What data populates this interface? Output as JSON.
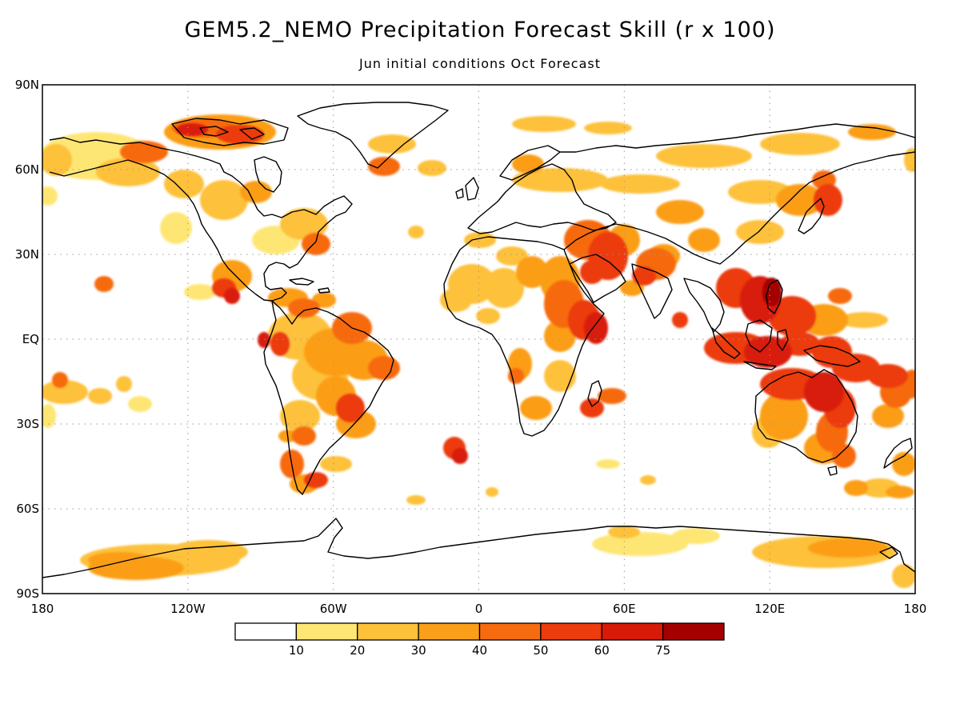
{
  "title": "GEM5.2_NEMO Precipitation Forecast Skill (r x 100)",
  "subtitle": "Jun initial conditions  Oct Forecast",
  "lat_labels": [
    "90N",
    "60N",
    "30N",
    "EQ",
    "30S",
    "60S",
    "90S"
  ],
  "lon_labels": [
    "180",
    "120W",
    "60W",
    "0",
    "60E",
    "120E",
    "180"
  ],
  "colorbar": {
    "colors": [
      "#ffffff",
      "#fee675",
      "#fdc13a",
      "#fb9e19",
      "#f66b0f",
      "#ec3b0c",
      "#d81a08",
      "#a50000"
    ],
    "labels": [
      "10",
      "20",
      "30",
      "40",
      "50",
      "60",
      "75"
    ]
  },
  "colors": {
    "coast": "#000000",
    "grid": "#999999"
  },
  "regions": [
    {
      "name": "Canadian Arctic Archipelago",
      "level": 5
    },
    {
      "name": "Alaska / western Canada",
      "level": 3
    },
    {
      "name": "Central America / Mexico",
      "level": 5
    },
    {
      "name": "Northern South America",
      "level": 4
    },
    {
      "name": "Southeastern South America",
      "level": 5
    },
    {
      "name": "Patagonia",
      "level": 4
    },
    {
      "name": "Sahel / West Africa",
      "level": 2
    },
    {
      "name": "East Africa / Horn",
      "level": 5
    },
    {
      "name": "Madagascar",
      "level": 5
    },
    {
      "name": "Middle East / Arabia",
      "level": 5
    },
    {
      "name": "India / Pakistan",
      "level": 5
    },
    {
      "name": "Northern Eurasia band",
      "level": 3
    },
    {
      "name": "Maritime Continent",
      "level": 6
    },
    {
      "name": "Philippines",
      "level": 6
    },
    {
      "name": "Northern Australia",
      "level": 6
    },
    {
      "name": "Eastern Australia",
      "level": 5
    },
    {
      "name": "South Atlantic patch",
      "level": 5
    },
    {
      "name": "Antarctic Ross sector",
      "level": 2
    },
    {
      "name": "East Antarctica coast",
      "level": 2
    }
  ]
}
